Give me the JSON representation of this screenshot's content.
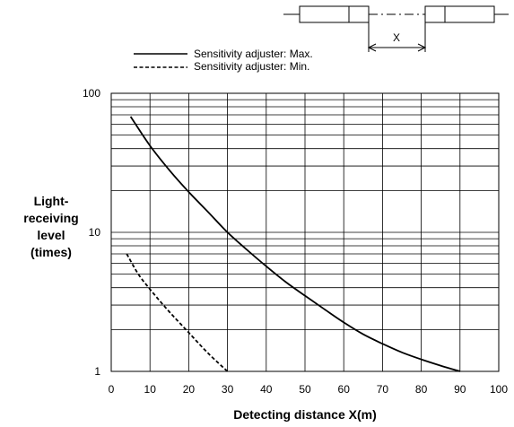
{
  "chart_data": {
    "type": "line",
    "xlabel": "Detecting distance X(m)",
    "ylabel_lines": [
      "Light-",
      "receiving",
      "level",
      "(times)"
    ],
    "xlim": [
      0,
      100
    ],
    "ylim": [
      1,
      100
    ],
    "y_scale": "log",
    "grid": true,
    "legend_position": "top-right",
    "x_ticks": [
      "0",
      "10",
      "20",
      "30",
      "40",
      "50",
      "60",
      "70",
      "80",
      "90",
      "100"
    ],
    "y_ticks": [
      "1",
      "10",
      "100"
    ],
    "series": [
      {
        "name": "Sensitivity adjuster: Max.",
        "style": "solid",
        "x": [
          5,
          10,
          15,
          20,
          25,
          30,
          35,
          40,
          45,
          50,
          55,
          60,
          65,
          70,
          75,
          80,
          85,
          90
        ],
        "y": [
          68,
          42,
          28,
          19.5,
          14,
          10,
          7.5,
          5.7,
          4.4,
          3.5,
          2.8,
          2.25,
          1.85,
          1.58,
          1.37,
          1.22,
          1.1,
          1.0
        ]
      },
      {
        "name": "Sensitivity adjuster: Min.",
        "style": "dashed",
        "x": [
          4,
          7,
          10,
          13,
          16,
          20,
          25,
          30
        ],
        "y": [
          7,
          5,
          3.9,
          3.1,
          2.5,
          1.9,
          1.35,
          1.0
        ]
      }
    ],
    "diagram_label": "X"
  }
}
